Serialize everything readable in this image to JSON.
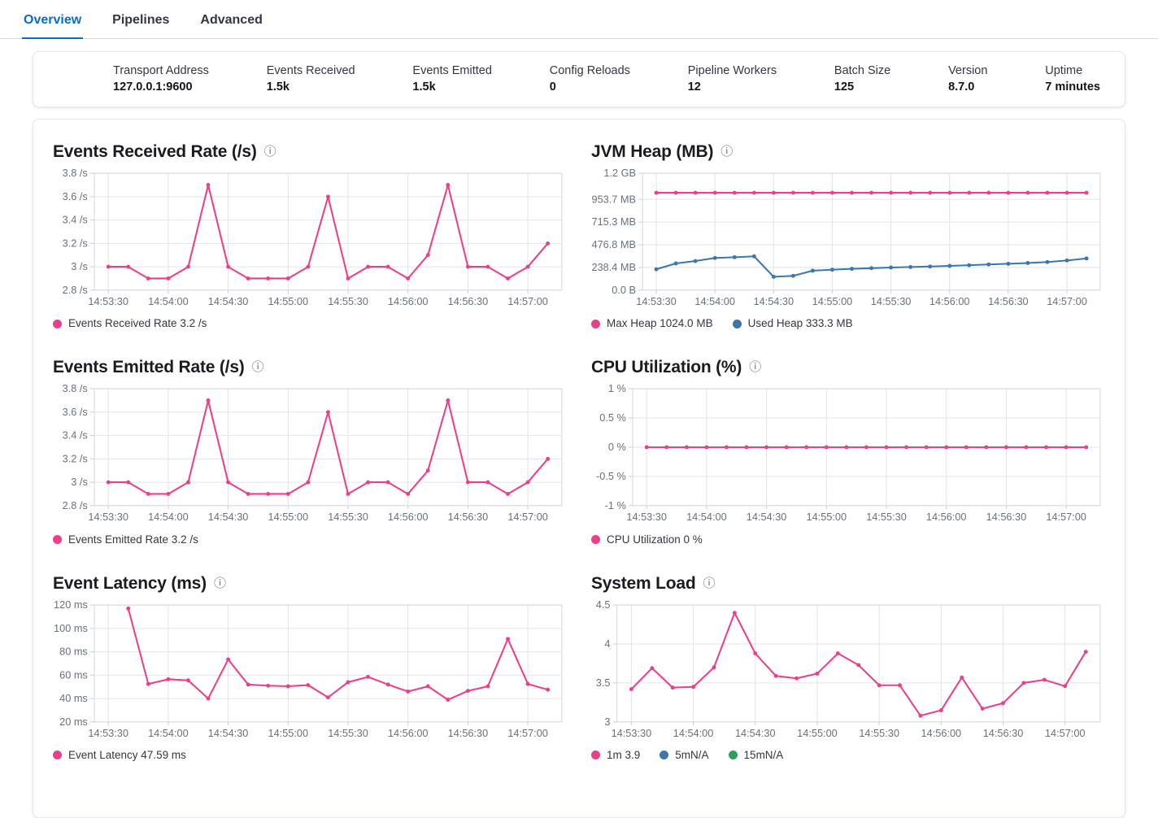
{
  "colors": {
    "pink": "#ee3d8b",
    "blue": "#3b76b0",
    "green": "#2da05f",
    "accent_blue": "#0b6bcb",
    "grid": "#e2e4e9",
    "axis_text": "#69707d"
  },
  "tabs": [
    {
      "label": "Overview",
      "active": true
    },
    {
      "label": "Pipelines",
      "active": false
    },
    {
      "label": "Advanced",
      "active": false
    }
  ],
  "stats": [
    {
      "label": "Transport Address",
      "value": "127.0.0.1:9600"
    },
    {
      "label": "Events Received",
      "value": "1.5k"
    },
    {
      "label": "Events Emitted",
      "value": "1.5k"
    },
    {
      "label": "Config Reloads",
      "value": "0"
    },
    {
      "label": "Pipeline Workers",
      "value": "12"
    },
    {
      "label": "Batch Size",
      "value": "125"
    },
    {
      "label": "Version",
      "value": "8.7.0"
    },
    {
      "label": "Uptime",
      "value": "7 minutes"
    }
  ],
  "chart_data": [
    {
      "type": "line",
      "title": "Events Received Rate (/s)",
      "xlim": [
        -7,
        227
      ],
      "ylim": [
        2.8,
        3.8
      ],
      "y_ticks": [
        {
          "v": 2.8,
          "label": "2.8 /s"
        },
        {
          "v": 3.0,
          "label": "3 /s"
        },
        {
          "v": 3.2,
          "label": "3.2 /s"
        },
        {
          "v": 3.4,
          "label": "3.4 /s"
        },
        {
          "v": 3.6,
          "label": "3.6 /s"
        },
        {
          "v": 3.8,
          "label": "3.8 /s"
        }
      ],
      "x_ticks": [
        {
          "t": 0,
          "label": "14:53:30"
        },
        {
          "t": 30,
          "label": "14:54:00"
        },
        {
          "t": 60,
          "label": "14:54:30"
        },
        {
          "t": 90,
          "label": "14:55:00"
        },
        {
          "t": 120,
          "label": "14:55:30"
        },
        {
          "t": 150,
          "label": "14:56:00"
        },
        {
          "t": 180,
          "label": "14:56:30"
        },
        {
          "t": 210,
          "label": "14:57:00"
        }
      ],
      "series": [
        {
          "name": "Events Received Rate",
          "color": "pink",
          "x": [
            0,
            10,
            20,
            30,
            40,
            50,
            60,
            70,
            80,
            90,
            100,
            110,
            120,
            130,
            140,
            150,
            160,
            170,
            180,
            190,
            200,
            210,
            220
          ],
          "values": [
            3.0,
            3.0,
            2.9,
            2.9,
            3.0,
            3.7,
            3.0,
            2.9,
            2.9,
            2.9,
            3.0,
            3.6,
            2.9,
            3.0,
            3.0,
            2.9,
            3.1,
            3.7,
            3.0,
            3.0,
            2.9,
            3.0,
            3.2
          ]
        }
      ],
      "legend": [
        {
          "color": "pink",
          "label": "Events Received Rate 3.2 /s"
        }
      ]
    },
    {
      "type": "line",
      "title": "JVM Heap (MB)",
      "xlim": [
        -7,
        227
      ],
      "ylim": [
        0,
        1228.8
      ],
      "y_ticks": [
        {
          "v": 0,
          "label": "0.0 B"
        },
        {
          "v": 238.4,
          "label": "238.4 MB"
        },
        {
          "v": 476.8,
          "label": "476.8 MB"
        },
        {
          "v": 715.3,
          "label": "715.3 MB"
        },
        {
          "v": 953.7,
          "label": "953.7 MB"
        },
        {
          "v": 1228.8,
          "label": "1.2 GB"
        }
      ],
      "x_ticks": [
        {
          "t": 0,
          "label": "14:53:30"
        },
        {
          "t": 30,
          "label": "14:54:00"
        },
        {
          "t": 60,
          "label": "14:54:30"
        },
        {
          "t": 90,
          "label": "14:55:00"
        },
        {
          "t": 120,
          "label": "14:55:30"
        },
        {
          "t": 150,
          "label": "14:56:00"
        },
        {
          "t": 180,
          "label": "14:56:30"
        },
        {
          "t": 210,
          "label": "14:57:00"
        }
      ],
      "series": [
        {
          "name": "Max Heap",
          "color": "pink",
          "x": [
            0,
            10,
            20,
            30,
            40,
            50,
            60,
            70,
            80,
            90,
            100,
            110,
            120,
            130,
            140,
            150,
            160,
            170,
            180,
            190,
            200,
            210,
            220
          ],
          "values": [
            1024,
            1024,
            1024,
            1024,
            1024,
            1024,
            1024,
            1024,
            1024,
            1024,
            1024,
            1024,
            1024,
            1024,
            1024,
            1024,
            1024,
            1024,
            1024,
            1024,
            1024,
            1024,
            1024
          ]
        },
        {
          "name": "Used Heap",
          "color": "blue",
          "x": [
            0,
            10,
            20,
            30,
            40,
            50,
            60,
            70,
            80,
            90,
            100,
            110,
            120,
            130,
            140,
            150,
            160,
            170,
            180,
            190,
            200,
            210,
            220
          ],
          "values": [
            220,
            281,
            306,
            338,
            346,
            356,
            140,
            150,
            205,
            215,
            224,
            231,
            238,
            243,
            248,
            255,
            262,
            270,
            277,
            285,
            295,
            312,
            333
          ]
        }
      ],
      "legend": [
        {
          "color": "pink",
          "label": "Max Heap 1024.0 MB"
        },
        {
          "color": "blue",
          "label": "Used Heap 333.3 MB"
        }
      ]
    },
    {
      "type": "line",
      "title": "Events Emitted Rate (/s)",
      "xlim": [
        -7,
        227
      ],
      "ylim": [
        2.8,
        3.8
      ],
      "y_ticks": [
        {
          "v": 2.8,
          "label": "2.8 /s"
        },
        {
          "v": 3.0,
          "label": "3 /s"
        },
        {
          "v": 3.2,
          "label": "3.2 /s"
        },
        {
          "v": 3.4,
          "label": "3.4 /s"
        },
        {
          "v": 3.6,
          "label": "3.6 /s"
        },
        {
          "v": 3.8,
          "label": "3.8 /s"
        }
      ],
      "x_ticks": [
        {
          "t": 0,
          "label": "14:53:30"
        },
        {
          "t": 30,
          "label": "14:54:00"
        },
        {
          "t": 60,
          "label": "14:54:30"
        },
        {
          "t": 90,
          "label": "14:55:00"
        },
        {
          "t": 120,
          "label": "14:55:30"
        },
        {
          "t": 150,
          "label": "14:56:00"
        },
        {
          "t": 180,
          "label": "14:56:30"
        },
        {
          "t": 210,
          "label": "14:57:00"
        }
      ],
      "series": [
        {
          "name": "Events Emitted Rate",
          "color": "pink",
          "x": [
            0,
            10,
            20,
            30,
            40,
            50,
            60,
            70,
            80,
            90,
            100,
            110,
            120,
            130,
            140,
            150,
            160,
            170,
            180,
            190,
            200,
            210,
            220
          ],
          "values": [
            3.0,
            3.0,
            2.9,
            2.9,
            3.0,
            3.7,
            3.0,
            2.9,
            2.9,
            2.9,
            3.0,
            3.6,
            2.9,
            3.0,
            3.0,
            2.9,
            3.1,
            3.7,
            3.0,
            3.0,
            2.9,
            3.0,
            3.2
          ]
        }
      ],
      "legend": [
        {
          "color": "pink",
          "label": "Events Emitted Rate 3.2 /s"
        }
      ]
    },
    {
      "type": "line",
      "title": "CPU Utilization (%)",
      "xlim": [
        -7,
        227
      ],
      "ylim": [
        -1,
        1
      ],
      "y_ticks": [
        {
          "v": -1,
          "label": "-1 %"
        },
        {
          "v": -0.5,
          "label": "-0.5 %"
        },
        {
          "v": 0,
          "label": "0 %"
        },
        {
          "v": 0.5,
          "label": "0.5 %"
        },
        {
          "v": 1,
          "label": "1 %"
        }
      ],
      "x_ticks": [
        {
          "t": 0,
          "label": "14:53:30"
        },
        {
          "t": 30,
          "label": "14:54:00"
        },
        {
          "t": 60,
          "label": "14:54:30"
        },
        {
          "t": 90,
          "label": "14:55:00"
        },
        {
          "t": 120,
          "label": "14:55:30"
        },
        {
          "t": 150,
          "label": "14:56:00"
        },
        {
          "t": 180,
          "label": "14:56:30"
        },
        {
          "t": 210,
          "label": "14:57:00"
        }
      ],
      "series": [
        {
          "name": "CPU Utilization",
          "color": "pink",
          "x": [
            0,
            10,
            20,
            30,
            40,
            50,
            60,
            70,
            80,
            90,
            100,
            110,
            120,
            130,
            140,
            150,
            160,
            170,
            180,
            190,
            200,
            210,
            220
          ],
          "values": [
            0,
            0,
            0,
            0,
            0,
            0,
            0,
            0,
            0,
            0,
            0,
            0,
            0,
            0,
            0,
            0,
            0,
            0,
            0,
            0,
            0,
            0,
            0
          ]
        }
      ],
      "legend": [
        {
          "color": "pink",
          "label": "CPU Utilization 0 %"
        }
      ]
    },
    {
      "type": "line",
      "title": "Event Latency (ms)",
      "xlim": [
        -7,
        227
      ],
      "ylim": [
        20,
        120
      ],
      "y_ticks": [
        {
          "v": 20,
          "label": "20 ms"
        },
        {
          "v": 40,
          "label": "40 ms"
        },
        {
          "v": 60,
          "label": "60 ms"
        },
        {
          "v": 80,
          "label": "80 ms"
        },
        {
          "v": 100,
          "label": "100 ms"
        },
        {
          "v": 120,
          "label": "120 ms"
        }
      ],
      "x_ticks": [
        {
          "t": 0,
          "label": "14:53:30"
        },
        {
          "t": 30,
          "label": "14:54:00"
        },
        {
          "t": 60,
          "label": "14:54:30"
        },
        {
          "t": 90,
          "label": "14:55:00"
        },
        {
          "t": 120,
          "label": "14:55:30"
        },
        {
          "t": 150,
          "label": "14:56:00"
        },
        {
          "t": 180,
          "label": "14:56:30"
        },
        {
          "t": 210,
          "label": "14:57:00"
        }
      ],
      "series": [
        {
          "name": "Event Latency",
          "color": "pink",
          "x": [
            10,
            20,
            30,
            40,
            50,
            60,
            70,
            80,
            90,
            100,
            110,
            120,
            130,
            140,
            150,
            160,
            170,
            180,
            190,
            200,
            210,
            220
          ],
          "values": [
            117,
            52.5,
            56.5,
            55.5,
            40,
            73.5,
            52,
            51,
            50.5,
            51.5,
            41,
            54,
            58.5,
            52,
            46,
            50.5,
            39,
            46.5,
            50.5,
            91,
            52.5,
            47.59
          ]
        }
      ],
      "legend": [
        {
          "color": "pink",
          "label": "Event Latency 47.59 ms"
        }
      ]
    },
    {
      "type": "line",
      "title": "System Load",
      "xlim": [
        -7,
        227
      ],
      "ylim": [
        3,
        4.5
      ],
      "y_ticks": [
        {
          "v": 3,
          "label": "3"
        },
        {
          "v": 3.5,
          "label": "3.5"
        },
        {
          "v": 4,
          "label": "4"
        },
        {
          "v": 4.5,
          "label": "4.5"
        }
      ],
      "x_ticks": [
        {
          "t": 0,
          "label": "14:53:30"
        },
        {
          "t": 30,
          "label": "14:54:00"
        },
        {
          "t": 60,
          "label": "14:54:30"
        },
        {
          "t": 90,
          "label": "14:55:00"
        },
        {
          "t": 120,
          "label": "14:55:30"
        },
        {
          "t": 150,
          "label": "14:56:00"
        },
        {
          "t": 180,
          "label": "14:56:30"
        },
        {
          "t": 210,
          "label": "14:57:00"
        }
      ],
      "series": [
        {
          "name": "1m",
          "color": "pink",
          "x": [
            0,
            10,
            20,
            30,
            40,
            50,
            60,
            70,
            80,
            90,
            100,
            110,
            120,
            130,
            140,
            150,
            160,
            170,
            180,
            190,
            200,
            210,
            220
          ],
          "values": [
            3.42,
            3.69,
            3.44,
            3.45,
            3.7,
            4.4,
            3.88,
            3.59,
            3.56,
            3.62,
            3.88,
            3.73,
            3.47,
            3.47,
            3.08,
            3.15,
            3.57,
            3.17,
            3.24,
            3.5,
            3.54,
            3.46,
            3.9
          ]
        }
      ],
      "legend": [
        {
          "color": "pink",
          "label": "1m 3.9"
        },
        {
          "color": "blue",
          "label": "5mN/A"
        },
        {
          "color": "green",
          "label": "15mN/A"
        }
      ]
    }
  ]
}
